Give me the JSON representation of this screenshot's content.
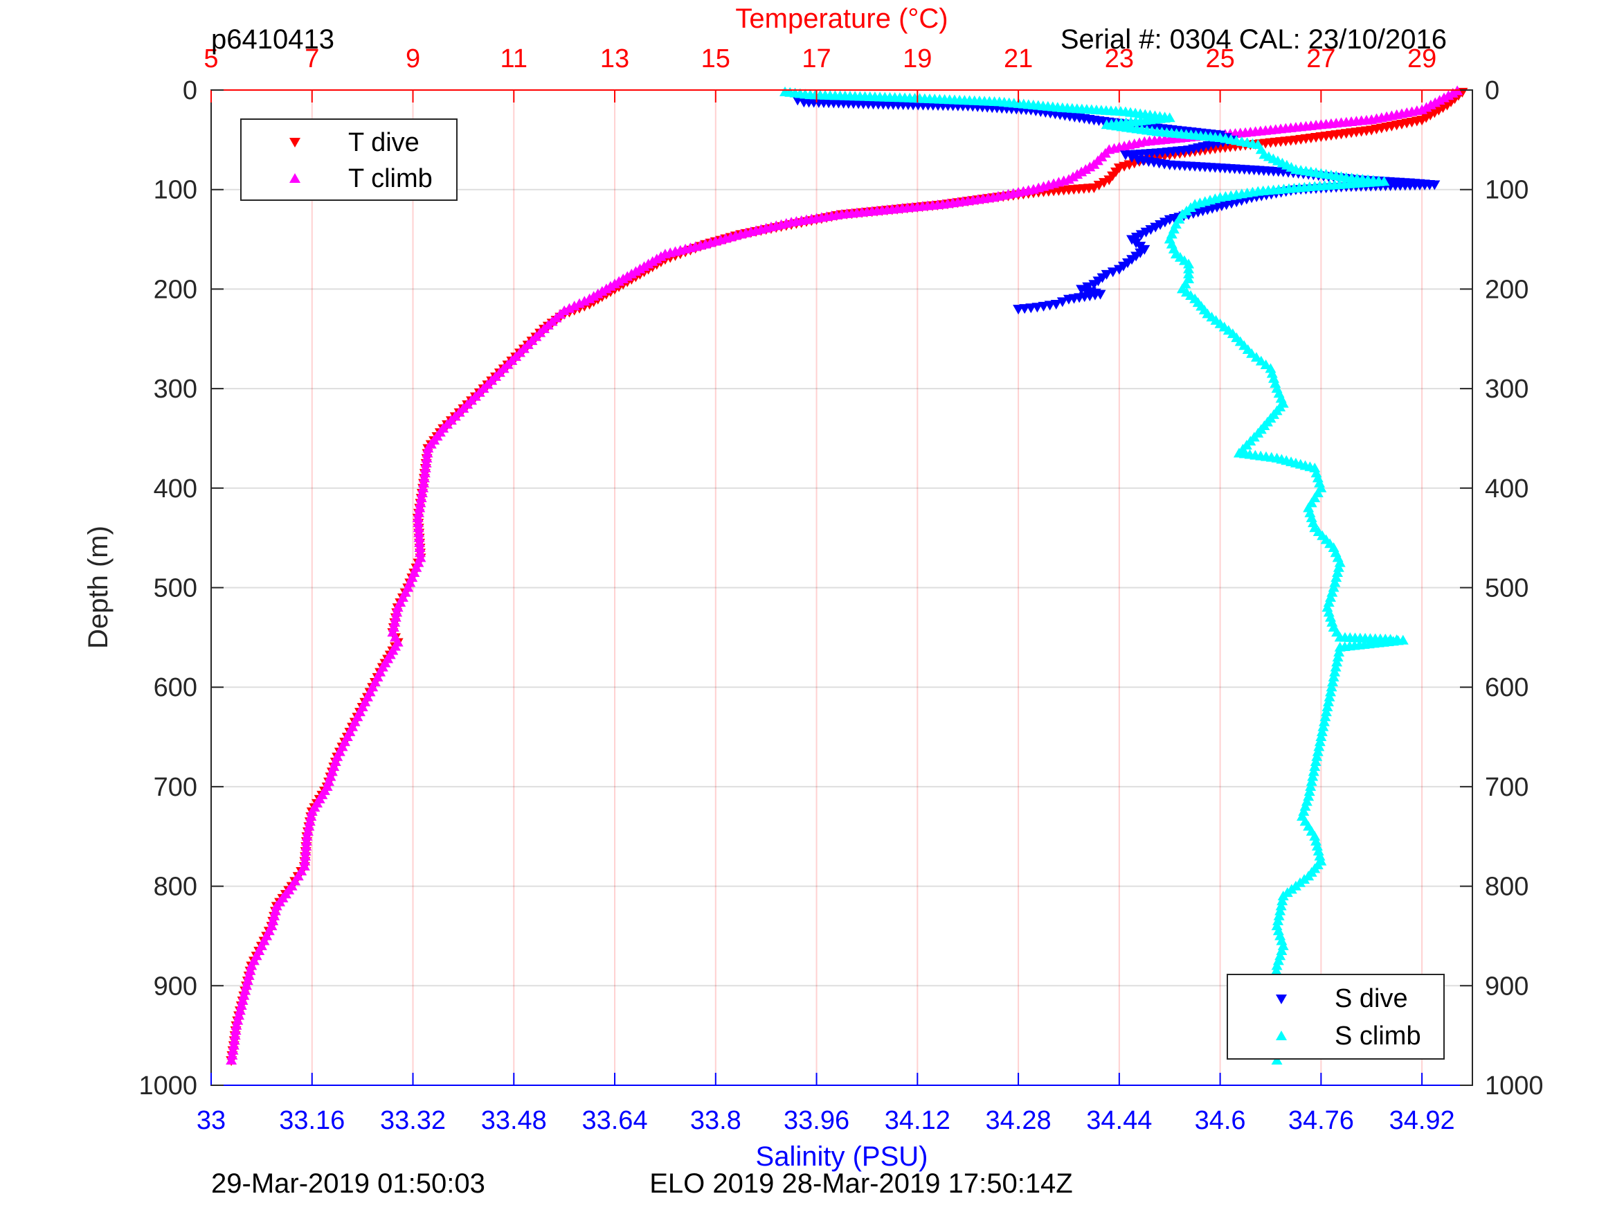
{
  "header": {
    "left": "p6410413",
    "right": "Serial #: 0304  CAL: 23/10/2016"
  },
  "footer": {
    "left": "29-Mar-2019 01:50:03",
    "center": "ELO 2019 28-Mar-2019 17:50:14Z"
  },
  "colors": {
    "temp_axis": "#ff0000",
    "sal_axis": "#0000ff",
    "t_dive": "#ff0000",
    "t_climb": "#ff00ff",
    "s_dive": "#0000ff",
    "s_climb": "#00ffff"
  },
  "chart_data": {
    "type": "scatter",
    "top_axis": {
      "label": "Temperature (°C)",
      "range": [
        5,
        30
      ],
      "ticks": [
        5,
        7,
        9,
        11,
        13,
        15,
        17,
        19,
        21,
        23,
        25,
        27,
        29
      ]
    },
    "bottom_axis": {
      "label": "Salinity (PSU)",
      "range": [
        33.0,
        35.0
      ],
      "ticks": [
        "33",
        "33.16",
        "33.32",
        "33.48",
        "33.64",
        "33.8",
        "33.96",
        "34.12",
        "34.28",
        "34.44",
        "34.6",
        "34.76",
        "34.92"
      ]
    },
    "left_axis": {
      "label": "Depth (m)",
      "range": [
        0,
        1000
      ],
      "reversed": true,
      "ticks": [
        0,
        100,
        200,
        300,
        400,
        500,
        600,
        700,
        800,
        900,
        1000
      ]
    },
    "right_axis": {
      "range": [
        0,
        1000
      ],
      "reversed": true,
      "ticks": [
        0,
        100,
        200,
        300,
        400,
        500,
        600,
        700,
        800,
        900,
        1000
      ]
    },
    "grid": "vertical temperature grid (red), horizontal depth grid (gray)",
    "legends": [
      {
        "position": "top-left",
        "entries": [
          "T dive",
          "T climb"
        ]
      },
      {
        "position": "bottom-right",
        "entries": [
          "S dive",
          "S climb"
        ]
      }
    ],
    "series": [
      {
        "name": "T dive",
        "axis": "temperature",
        "marker": "triangle-down",
        "points": [
          [
            29.8,
            2
          ],
          [
            29.5,
            15
          ],
          [
            29.0,
            30
          ],
          [
            28.0,
            40
          ],
          [
            26.5,
            50
          ],
          [
            25.0,
            58
          ],
          [
            24.0,
            65
          ],
          [
            23.5,
            70
          ],
          [
            23.0,
            78
          ],
          [
            22.8,
            90
          ],
          [
            22.5,
            98
          ],
          [
            21.5,
            102
          ],
          [
            20.5,
            108
          ],
          [
            19.5,
            115
          ],
          [
            18.5,
            120
          ],
          [
            17.5,
            125
          ],
          [
            16.5,
            135
          ],
          [
            15.5,
            145
          ],
          [
            14.8,
            155
          ],
          [
            14.0,
            170
          ],
          [
            13.5,
            185
          ],
          [
            13.0,
            200
          ],
          [
            12.5,
            215
          ],
          [
            12.0,
            225
          ],
          [
            11.6,
            240
          ],
          [
            11.2,
            260
          ],
          [
            10.8,
            280
          ],
          [
            10.4,
            300
          ],
          [
            10.0,
            320
          ],
          [
            9.6,
            340
          ],
          [
            9.3,
            360
          ],
          [
            9.2,
            400
          ],
          [
            9.1,
            430
          ],
          [
            9.15,
            470
          ],
          [
            8.9,
            500
          ],
          [
            8.7,
            520
          ],
          [
            8.6,
            545
          ],
          [
            8.7,
            555
          ],
          [
            8.4,
            580
          ],
          [
            8.1,
            610
          ],
          [
            7.8,
            640
          ],
          [
            7.5,
            670
          ],
          [
            7.3,
            700
          ],
          [
            7.0,
            725
          ],
          [
            6.9,
            750
          ],
          [
            6.85,
            780
          ],
          [
            6.6,
            800
          ],
          [
            6.3,
            820
          ],
          [
            6.2,
            840
          ],
          [
            6.0,
            860
          ],
          [
            5.8,
            880
          ],
          [
            5.7,
            900
          ],
          [
            5.6,
            920
          ],
          [
            5.5,
            940
          ],
          [
            5.45,
            960
          ],
          [
            5.4,
            975
          ]
        ]
      },
      {
        "name": "T climb",
        "axis": "temperature",
        "marker": "triangle-up",
        "points": [
          [
            29.7,
            1
          ],
          [
            29.0,
            20
          ],
          [
            28.0,
            30
          ],
          [
            27.0,
            35
          ],
          [
            25.5,
            43
          ],
          [
            24.5,
            47
          ],
          [
            23.5,
            52
          ],
          [
            22.8,
            60
          ],
          [
            22.5,
            75
          ],
          [
            22.0,
            90
          ],
          [
            21.3,
            100
          ],
          [
            20.5,
            108
          ],
          [
            19.5,
            115
          ],
          [
            18.5,
            120
          ],
          [
            17.5,
            125
          ],
          [
            16.5,
            133
          ],
          [
            15.5,
            145
          ],
          [
            14.8,
            155
          ],
          [
            14.0,
            165
          ],
          [
            13.5,
            180
          ],
          [
            13.0,
            195
          ],
          [
            12.5,
            210
          ],
          [
            12.0,
            222
          ],
          [
            11.6,
            240
          ],
          [
            11.2,
            260
          ],
          [
            10.8,
            280
          ],
          [
            10.4,
            300
          ],
          [
            10.0,
            320
          ],
          [
            9.6,
            340
          ],
          [
            9.3,
            360
          ],
          [
            9.2,
            400
          ],
          [
            9.1,
            430
          ],
          [
            9.15,
            470
          ],
          [
            8.9,
            500
          ],
          [
            8.7,
            520
          ],
          [
            8.6,
            545
          ],
          [
            8.7,
            555
          ],
          [
            8.4,
            580
          ],
          [
            8.1,
            610
          ],
          [
            7.8,
            640
          ],
          [
            7.5,
            670
          ],
          [
            7.3,
            700
          ],
          [
            7.0,
            725
          ],
          [
            6.9,
            750
          ],
          [
            6.85,
            780
          ],
          [
            6.6,
            800
          ],
          [
            6.3,
            820
          ],
          [
            6.2,
            840
          ],
          [
            6.0,
            860
          ],
          [
            5.8,
            880
          ],
          [
            5.7,
            900
          ],
          [
            5.6,
            920
          ],
          [
            5.5,
            940
          ],
          [
            5.45,
            960
          ],
          [
            5.4,
            975
          ]
        ]
      },
      {
        "name": "S dive",
        "axis": "salinity",
        "marker": "triangle-down",
        "points": [
          [
            33.93,
            10
          ],
          [
            33.94,
            12
          ],
          [
            34.05,
            14
          ],
          [
            34.2,
            16
          ],
          [
            34.3,
            20
          ],
          [
            34.4,
            30
          ],
          [
            34.5,
            38
          ],
          [
            34.6,
            45
          ],
          [
            34.62,
            50
          ],
          [
            34.55,
            60
          ],
          [
            34.5,
            63
          ],
          [
            34.45,
            65
          ],
          [
            34.47,
            70
          ],
          [
            34.52,
            75
          ],
          [
            34.6,
            78
          ],
          [
            34.7,
            82
          ],
          [
            34.82,
            90
          ],
          [
            34.9,
            93
          ],
          [
            34.94,
            95
          ],
          [
            34.8,
            97
          ],
          [
            34.72,
            100
          ],
          [
            34.65,
            108
          ],
          [
            34.61,
            115
          ],
          [
            34.58,
            120
          ],
          [
            34.55,
            125
          ],
          [
            34.52,
            130
          ],
          [
            34.49,
            140
          ],
          [
            34.46,
            150
          ],
          [
            34.48,
            160
          ],
          [
            34.46,
            170
          ],
          [
            34.44,
            180
          ],
          [
            34.42,
            185
          ],
          [
            34.4,
            195
          ],
          [
            34.38,
            200
          ],
          [
            34.41,
            205
          ],
          [
            34.36,
            210
          ],
          [
            34.34,
            215
          ],
          [
            34.31,
            218
          ],
          [
            34.28,
            220
          ]
        ]
      },
      {
        "name": "S climb",
        "axis": "salinity",
        "marker": "triangle-up",
        "points": [
          [
            33.91,
            2
          ],
          [
            33.95,
            5
          ],
          [
            34.1,
            8
          ],
          [
            34.25,
            12
          ],
          [
            34.35,
            18
          ],
          [
            34.45,
            22
          ],
          [
            34.52,
            28
          ],
          [
            34.42,
            35
          ],
          [
            34.5,
            42
          ],
          [
            34.6,
            48
          ],
          [
            34.66,
            55
          ],
          [
            34.67,
            65
          ],
          [
            34.72,
            80
          ],
          [
            34.8,
            88
          ],
          [
            34.86,
            92
          ],
          [
            34.75,
            97
          ],
          [
            34.66,
            102
          ],
          [
            34.6,
            108
          ],
          [
            34.56,
            115
          ],
          [
            34.54,
            125
          ],
          [
            34.53,
            135
          ],
          [
            34.52,
            150
          ],
          [
            34.53,
            165
          ],
          [
            34.55,
            175
          ],
          [
            34.55,
            190
          ],
          [
            34.54,
            200
          ],
          [
            34.56,
            210
          ],
          [
            34.58,
            225
          ],
          [
            34.62,
            245
          ],
          [
            34.65,
            265
          ],
          [
            34.68,
            280
          ],
          [
            34.69,
            300
          ],
          [
            34.7,
            315
          ],
          [
            34.68,
            330
          ],
          [
            34.66,
            345
          ],
          [
            34.63,
            365
          ],
          [
            34.69,
            370
          ],
          [
            34.72,
            375
          ],
          [
            34.75,
            380
          ],
          [
            34.76,
            400
          ],
          [
            34.74,
            420
          ],
          [
            34.75,
            440
          ],
          [
            34.78,
            460
          ],
          [
            34.79,
            475
          ],
          [
            34.78,
            500
          ],
          [
            34.77,
            520
          ],
          [
            34.78,
            540
          ],
          [
            34.79,
            550
          ],
          [
            34.87,
            552
          ],
          [
            34.89,
            553
          ],
          [
            34.79,
            560
          ],
          [
            34.78,
            590
          ],
          [
            34.77,
            620
          ],
          [
            34.76,
            650
          ],
          [
            34.75,
            680
          ],
          [
            34.74,
            710
          ],
          [
            34.73,
            730
          ],
          [
            34.75,
            750
          ],
          [
            34.76,
            775
          ],
          [
            34.74,
            790
          ],
          [
            34.7,
            810
          ],
          [
            34.69,
            840
          ],
          [
            34.7,
            860
          ],
          [
            34.69,
            880
          ],
          [
            34.685,
            910
          ],
          [
            34.69,
            935
          ],
          [
            34.7,
            955
          ],
          [
            34.69,
            975
          ]
        ]
      }
    ]
  }
}
